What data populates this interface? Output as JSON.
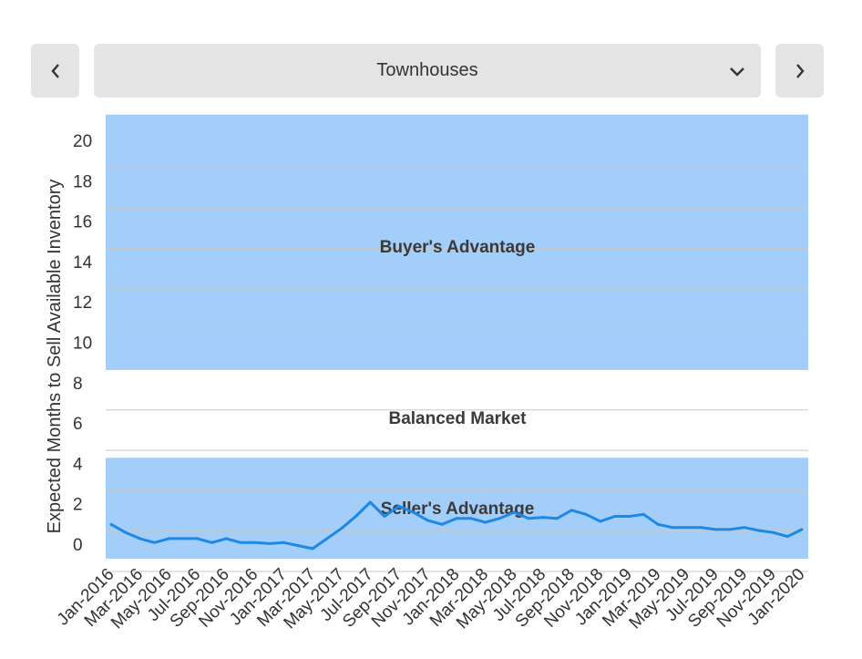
{
  "controls": {
    "property_type": "Townhouses",
    "prev_icon": "chevron-left-icon",
    "next_icon": "chevron-right-icon",
    "dropdown_icon": "chevron-down-icon"
  },
  "colors": {
    "zone_fill": "#a3cefa",
    "line": "#1e88e5",
    "grid": "#c8c8c8",
    "button_bg": "#e4e4e4"
  },
  "chart_data": {
    "type": "line",
    "ylabel": "Expected Months to Sell Available Inventory",
    "xlabel": "",
    "ylim": [
      0,
      21
    ],
    "yticks": [
      0,
      2,
      4,
      6,
      8,
      10,
      12,
      14,
      16,
      18,
      20
    ],
    "grid": true,
    "zones": [
      {
        "label": "Buyer's Advantage",
        "from": 9,
        "to": 22,
        "shaded": true
      },
      {
        "label": "Balanced Market",
        "from": 5,
        "to": 9,
        "shaded": false
      },
      {
        "label": "Seller's Advantage",
        "from": 0,
        "to": 5,
        "shaded": true
      }
    ],
    "x_tick_labels": [
      "Jan-2016",
      "Mar-2016",
      "May-2016",
      "Jul-2016",
      "Sep-2016",
      "Nov-2016",
      "Jan-2017",
      "Mar-2017",
      "May-2017",
      "Jul-2017",
      "Sep-2017",
      "Nov-2017",
      "Jan-2018",
      "Mar-2018",
      "May-2018",
      "Jul-2018",
      "Sep-2018",
      "Nov-2018",
      "Jan-2019",
      "Mar-2019",
      "May-2019",
      "Jul-2019",
      "Sep-2019",
      "Nov-2019",
      "Jan-2020"
    ],
    "x": [
      "Jan-2016",
      "Feb-2016",
      "Mar-2016",
      "Apr-2016",
      "May-2016",
      "Jun-2016",
      "Jul-2016",
      "Aug-2016",
      "Sep-2016",
      "Oct-2016",
      "Nov-2016",
      "Dec-2016",
      "Jan-2017",
      "Feb-2017",
      "Mar-2017",
      "Apr-2017",
      "May-2017",
      "Jun-2017",
      "Jul-2017",
      "Aug-2017",
      "Sep-2017",
      "Oct-2017",
      "Nov-2017",
      "Dec-2017",
      "Jan-2018",
      "Feb-2018",
      "Mar-2018",
      "Apr-2018",
      "May-2018",
      "Jun-2018",
      "Jul-2018",
      "Aug-2018",
      "Sep-2018",
      "Oct-2018",
      "Nov-2018",
      "Dec-2018",
      "Jan-2019",
      "Feb-2019",
      "Mar-2019",
      "Apr-2019",
      "May-2019",
      "Jun-2019",
      "Jul-2019",
      "Aug-2019",
      "Sep-2019",
      "Oct-2019",
      "Nov-2019",
      "Dec-2019",
      "Jan-2020"
    ],
    "series": [
      {
        "values": [
          1.7,
          1.3,
          1.0,
          0.8,
          1.0,
          1.0,
          1.0,
          0.8,
          1.0,
          0.8,
          0.8,
          0.75,
          0.8,
          0.65,
          0.5,
          1.0,
          1.5,
          2.1,
          2.8,
          2.1,
          2.6,
          2.3,
          1.9,
          1.7,
          2.0,
          2.0,
          1.8,
          2.0,
          2.3,
          2.0,
          2.05,
          2.0,
          2.4,
          2.2,
          1.85,
          2.1,
          2.1,
          2.2,
          1.7,
          1.55,
          1.55,
          1.55,
          1.45,
          1.45,
          1.55,
          1.4,
          1.3,
          1.1,
          1.45
        ]
      }
    ]
  }
}
